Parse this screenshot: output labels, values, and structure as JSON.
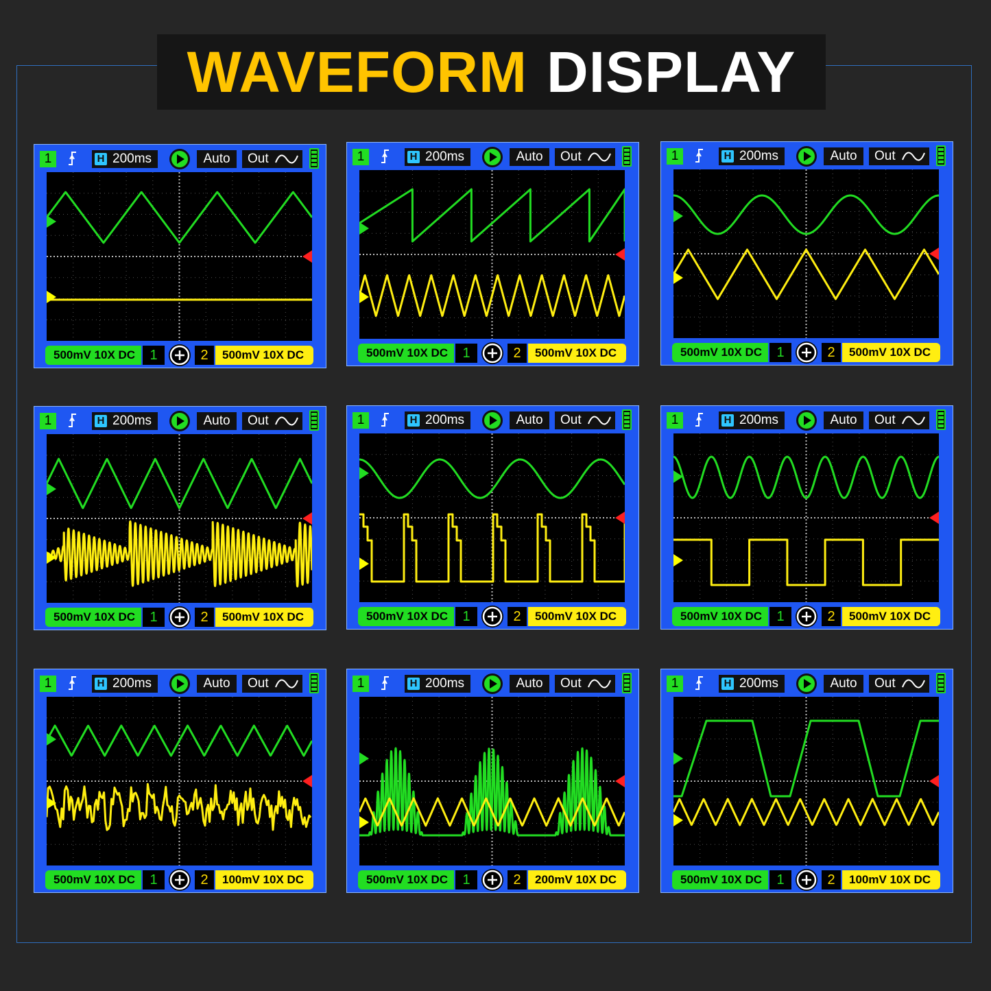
{
  "title": {
    "part1": "WAVEFORM",
    "part2": "DISPLAY"
  },
  "colors": {
    "background": "#262626",
    "title_accent": "#ffc400",
    "panel_blue": "#1f57f2",
    "ch1_green": "#22dd22",
    "ch2_yellow": "#ffee11",
    "ch2_marker_yellow": "#ffff00",
    "ref_marker_red": "#ff2020",
    "timebase_icon": "#2ec6ff"
  },
  "icons": {
    "trigger": "rising-edge-trigger-icon",
    "timebase": "horizontal-h-icon",
    "run": "play-icon",
    "output": "sine-wave-icon",
    "battery": "battery-icon",
    "channel_add": "plus-circle-icon",
    "ch1_marker": "green-triangle-icon",
    "ch2_marker": "yellow-triangle-icon",
    "trigger_level_marker": "red-triangle-icon"
  },
  "panels": [
    {
      "ch1_badge": "1",
      "timebase": "200ms",
      "mode": "Auto",
      "out_label": "Out",
      "ch1_setting": "500mV 10X  DC",
      "ch1_num": "1",
      "ch2_num": "2",
      "ch2_setting": "500mV 10X  DC",
      "ch1_wave": "triangle",
      "ch2_wave": "flat"
    },
    {
      "ch1_badge": "1",
      "timebase": "200ms",
      "mode": "Auto",
      "out_label": "Out",
      "ch1_setting": "500mV 10X  DC",
      "ch1_num": "1",
      "ch2_num": "2",
      "ch2_setting": "500mV 10X  DC",
      "ch1_wave": "sawtooth",
      "ch2_wave": "triangle"
    },
    {
      "ch1_badge": "1",
      "timebase": "200ms",
      "mode": "Auto",
      "out_label": "Out",
      "ch1_setting": "500mV 10X  DC",
      "ch1_num": "1",
      "ch2_num": "2",
      "ch2_setting": "500mV 10X  DC",
      "ch1_wave": "sine",
      "ch2_wave": "triangle"
    },
    {
      "ch1_badge": "1",
      "timebase": "200ms",
      "mode": "Auto",
      "out_label": "Out",
      "ch1_setting": "500mV 10X  DC",
      "ch1_num": "1",
      "ch2_num": "2",
      "ch2_setting": "500mV 10X  DC",
      "ch1_wave": "triangle",
      "ch2_wave": "damped-burst"
    },
    {
      "ch1_badge": "1",
      "timebase": "200ms",
      "mode": "Auto",
      "out_label": "Out",
      "ch1_setting": "500mV 10X  DC",
      "ch1_num": "1",
      "ch2_num": "2",
      "ch2_setting": "500mV 10X  DC",
      "ch1_wave": "sine",
      "ch2_wave": "staircase-pulse"
    },
    {
      "ch1_badge": "1",
      "timebase": "200ms",
      "mode": "Auto",
      "out_label": "Out",
      "ch1_setting": "500mV 10X  DC",
      "ch1_num": "1",
      "ch2_num": "2",
      "ch2_setting": "500mV 10X  DC",
      "ch1_wave": "sine",
      "ch2_wave": "square"
    },
    {
      "ch1_badge": "1",
      "timebase": "200ms",
      "mode": "Auto",
      "out_label": "Out",
      "ch1_setting": "500mV 10X  DC",
      "ch1_num": "1",
      "ch2_num": "2",
      "ch2_setting": "100mV 10X  DC",
      "ch1_wave": "triangle",
      "ch2_wave": "noise"
    },
    {
      "ch1_badge": "1",
      "timebase": "200ms",
      "mode": "Auto",
      "out_label": "Out",
      "ch1_setting": "500mV 10X  DC",
      "ch1_num": "1",
      "ch2_num": "2",
      "ch2_setting": "200mV 10X  DC",
      "ch1_wave": "am-burst",
      "ch2_wave": "triangle"
    },
    {
      "ch1_badge": "1",
      "timebase": "200ms",
      "mode": "Auto",
      "out_label": "Out",
      "ch1_setting": "500mV 10X  DC",
      "ch1_num": "1",
      "ch2_num": "2",
      "ch2_setting": "100mV 10X  DC",
      "ch1_wave": "trapezoid",
      "ch2_wave": "triangle"
    }
  ]
}
